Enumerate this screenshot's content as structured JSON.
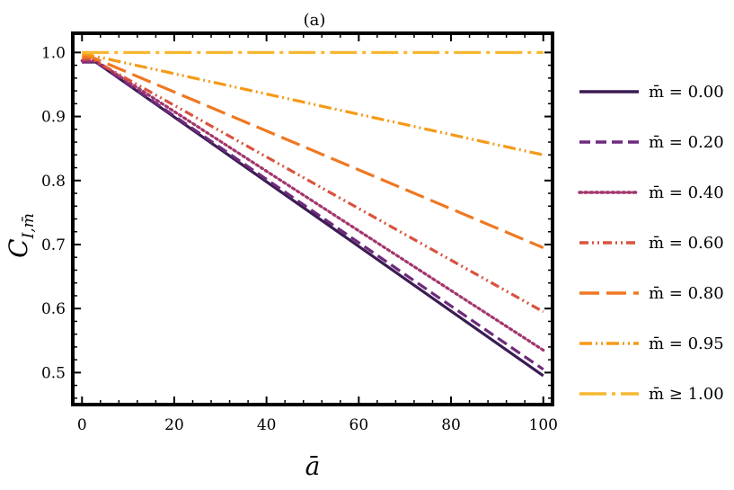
{
  "chart_data": {
    "type": "line",
    "title": "(a)",
    "xlabel": "ā",
    "ylabel": "C",
    "ylabel_subscript": "I,m̄",
    "xlim": [
      -2,
      102
    ],
    "ylim": [
      0.45,
      1.03
    ],
    "xticks": [
      0,
      20,
      40,
      60,
      80,
      100
    ],
    "xtick_labels": [
      "0",
      "20",
      "40",
      "60",
      "80",
      "100"
    ],
    "yticks": [
      0.5,
      0.6,
      0.7,
      0.8,
      0.9,
      1.0
    ],
    "ytick_labels": [
      "0.5",
      "0.6",
      "0.7",
      "0.8",
      "0.9",
      "1.0"
    ],
    "series": [
      {
        "name": "m̄ = 0.00",
        "color": "#3b1c53",
        "style": "solid",
        "x": [
          0,
          3,
          100
        ],
        "y": [
          0.985,
          0.985,
          0.495
        ]
      },
      {
        "name": "m̄ = 0.20",
        "color": "#6e2a7c",
        "style": "dashed",
        "x": [
          0,
          3,
          100
        ],
        "y": [
          0.985,
          0.985,
          0.505
        ]
      },
      {
        "name": "m̄ = 0.40",
        "color": "#a3366c",
        "style": "dotted",
        "x": [
          0,
          3,
          100
        ],
        "y": [
          0.987,
          0.987,
          0.535
        ]
      },
      {
        "name": "m̄ = 0.60",
        "color": "#d9543e",
        "style": "dashdotdot",
        "x": [
          0,
          2,
          100
        ],
        "y": [
          0.99,
          0.99,
          0.595
        ]
      },
      {
        "name": "m̄ = 0.80",
        "color": "#ef7821",
        "style": "longdash",
        "x": [
          0,
          2,
          100
        ],
        "y": [
          0.993,
          0.993,
          0.695
        ]
      },
      {
        "name": "m̄ = 0.95",
        "color": "#f59a17",
        "style": "dashdotdotlong",
        "x": [
          0,
          1,
          100
        ],
        "y": [
          0.997,
          0.997,
          0.84
        ]
      },
      {
        "name": "m̄ ≥ 1.00",
        "color": "#f7b731",
        "style": "dashdotlong",
        "x": [
          0,
          100
        ],
        "y": [
          1.0,
          1.0
        ]
      }
    ]
  }
}
